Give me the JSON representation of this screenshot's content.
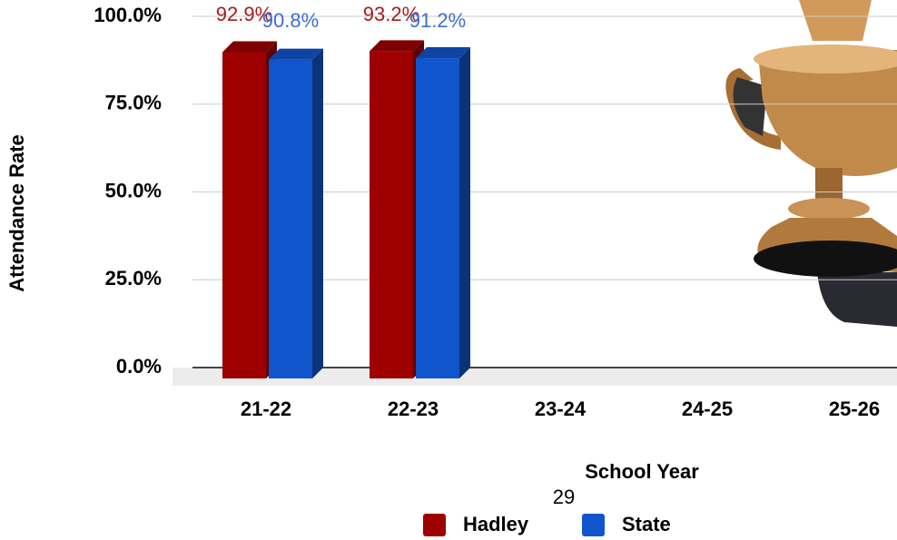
{
  "chart_data": {
    "type": "bar",
    "categories": [
      "21-22",
      "22-23",
      "23-24",
      "24-25",
      "25-26"
    ],
    "series": [
      {
        "name": "Hadley",
        "color": "#9e0000",
        "values": [
          92.9,
          93.2,
          null,
          null,
          null
        ],
        "value_labels": [
          "92.9%",
          "93.2%",
          null,
          null,
          null
        ]
      },
      {
        "name": "State",
        "color": "#1155cc",
        "values": [
          90.8,
          91.2,
          null,
          null,
          null
        ],
        "value_labels": [
          "90.8%",
          "91.2%",
          null,
          null,
          null
        ]
      }
    ],
    "ylim": [
      0,
      100
    ],
    "yticks": [
      {
        "value": 0,
        "label": "0.0%"
      },
      {
        "value": 25,
        "label": "25.0%"
      },
      {
        "value": 50,
        "label": "50.0%"
      },
      {
        "value": 75,
        "label": "75.0%"
      },
      {
        "value": 100,
        "label": "100.0%"
      }
    ],
    "ylabel": "Attendance Rate",
    "xlabel": "School Year",
    "grid": true,
    "page_number": "29"
  }
}
